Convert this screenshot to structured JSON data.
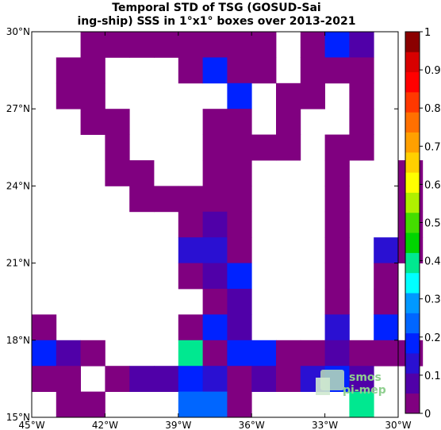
{
  "chart_data": {
    "type": "heatmap",
    "title_line1": "Temporal STD of TSG (GOSUD-Sai",
    "title_line2": "ing-ship) SSS in 1°x1° boxes over 2013-2021",
    "x_ticks": [
      {
        "value": -45,
        "label": "45°W"
      },
      {
        "value": -42,
        "label": "42°W"
      },
      {
        "value": -39,
        "label": "39°W"
      },
      {
        "value": -36,
        "label": "36°W"
      },
      {
        "value": -33,
        "label": "33°W"
      },
      {
        "value": -30,
        "label": "30°W"
      }
    ],
    "y_ticks": [
      {
        "value": 15,
        "label": "15°N"
      },
      {
        "value": 18,
        "label": "18°N"
      },
      {
        "value": 21,
        "label": "21°N"
      },
      {
        "value": 24,
        "label": "24°N"
      },
      {
        "value": 27,
        "label": "27°N"
      },
      {
        "value": 30,
        "label": "30°N"
      }
    ],
    "xlim": [
      -45,
      -30
    ],
    "ylim": [
      15,
      30
    ],
    "cell_size_deg": 1,
    "colorbar": {
      "vmin": 0,
      "vmax": 1,
      "ticks": [
        {
          "value": 0,
          "label": "0"
        },
        {
          "value": 0.1,
          "label": "0.1"
        },
        {
          "value": 0.2,
          "label": "0.2"
        },
        {
          "value": 0.3,
          "label": "0.3"
        },
        {
          "value": 0.4,
          "label": "0.4"
        },
        {
          "value": 0.5,
          "label": "0.5"
        },
        {
          "value": 0.6,
          "label": "0.6"
        },
        {
          "value": 0.7,
          "label": "0.7"
        },
        {
          "value": 0.8,
          "label": "0.8"
        },
        {
          "value": 0.9,
          "label": "0.9"
        },
        {
          "value": 1,
          "label": "1"
        }
      ],
      "colors": [
        "#800080",
        "#5000a8",
        "#2a10d2",
        "#0022ff",
        "#0066ff",
        "#0099ff",
        "#00ffff",
        "#00e890",
        "#00d400",
        "#44dd00",
        "#b0f000",
        "#ffff00",
        "#ffd000",
        "#ffa000",
        "#ff7000",
        "#ff3800",
        "#ff0000",
        "#d80000",
        "#8b0000"
      ]
    },
    "rows": [
      {
        "lat": 29,
        "cells": [
          [
            -43,
            0.05
          ],
          [
            -42,
            0.05
          ],
          [
            -41,
            0.0
          ],
          [
            -40,
            0.0
          ],
          [
            -39,
            0.05
          ],
          [
            -38,
            0.0
          ],
          [
            -37,
            0.05
          ],
          [
            -36,
            0.0
          ],
          [
            -34,
            0.05
          ],
          [
            -33,
            0.18
          ],
          [
            -32,
            0.1
          ]
        ]
      },
      {
        "lat": 28,
        "cells": [
          [
            -44,
            0.05
          ],
          [
            -43,
            0.05
          ],
          [
            -39,
            0.05
          ],
          [
            -38,
            0.18
          ],
          [
            -37,
            0.05
          ],
          [
            -36,
            0.05
          ],
          [
            -34,
            0.0
          ],
          [
            -33,
            0.05
          ],
          [
            -32,
            0.05
          ]
        ]
      },
      {
        "lat": 27,
        "cells": [
          [
            -44,
            0.0
          ],
          [
            -43,
            0.0
          ],
          [
            -37,
            0.2
          ],
          [
            -35,
            0.0
          ],
          [
            -34,
            0.05
          ],
          [
            -32,
            0.05
          ]
        ]
      },
      {
        "lat": 26,
        "cells": [
          [
            -43,
            0.0
          ],
          [
            -42,
            0.0
          ],
          [
            -38,
            0.05
          ],
          [
            -37,
            0.0
          ],
          [
            -35,
            0.0
          ],
          [
            -32,
            0.0
          ]
        ]
      },
      {
        "lat": 25,
        "cells": [
          [
            -42,
            0.0
          ],
          [
            -38,
            0.05
          ],
          [
            -37,
            0.05
          ],
          [
            -36,
            0.0
          ],
          [
            -35,
            0.0
          ],
          [
            -33,
            0.0
          ],
          [
            -32,
            0.0
          ]
        ]
      },
      {
        "lat": 24,
        "cells": [
          [
            -42,
            0.0
          ],
          [
            -41,
            0.0
          ],
          [
            -38,
            0.05
          ],
          [
            -37,
            0.05
          ],
          [
            -33,
            0.0
          ],
          [
            -30,
            0.0
          ]
        ]
      },
      {
        "lat": 23,
        "cells": [
          [
            -41,
            0.0
          ],
          [
            -40,
            0.0
          ],
          [
            -39,
            0.0
          ],
          [
            -38,
            0.05
          ],
          [
            -37,
            0.0
          ],
          [
            -33,
            0.0
          ],
          [
            -30,
            0.05
          ]
        ]
      },
      {
        "lat": 22,
        "cells": [
          [
            -39,
            0.05
          ],
          [
            -38,
            0.1
          ],
          [
            -37,
            0.05
          ],
          [
            -33,
            0.05
          ],
          [
            -30,
            0.0
          ]
        ]
      },
      {
        "lat": 21,
        "cells": [
          [
            -39,
            0.12
          ],
          [
            -38,
            0.12
          ],
          [
            -37,
            0.05
          ],
          [
            -33,
            0.0
          ],
          [
            -31,
            0.12
          ],
          [
            -30,
            0.0
          ]
        ]
      },
      {
        "lat": 20,
        "cells": [
          [
            -39,
            0.05
          ],
          [
            -38,
            0.1
          ],
          [
            -37,
            0.18
          ],
          [
            -33,
            0.0
          ],
          [
            -31,
            0.05
          ]
        ]
      },
      {
        "lat": 19,
        "cells": [
          [
            -38,
            0.05
          ],
          [
            -37,
            0.1
          ],
          [
            -33,
            0.0
          ],
          [
            -31,
            0.05
          ]
        ]
      },
      {
        "lat": 18,
        "cells": [
          [
            -45,
            0.0
          ],
          [
            -39,
            0.0
          ],
          [
            -38,
            0.18
          ],
          [
            -37,
            0.1
          ],
          [
            -33,
            0.12
          ],
          [
            -31,
            0.18
          ]
        ]
      },
      {
        "lat": 17,
        "cells": [
          [
            -45,
            0.18
          ],
          [
            -44,
            0.1
          ],
          [
            -43,
            0.05
          ],
          [
            -39,
            0.38
          ],
          [
            -38,
            0.05
          ],
          [
            -37,
            0.18
          ],
          [
            -36,
            0.18
          ],
          [
            -35,
            0.0
          ],
          [
            -34,
            0.0
          ],
          [
            -33,
            0.1
          ],
          [
            -32,
            0.05
          ],
          [
            -31,
            0.05
          ],
          [
            -30,
            0.05
          ]
        ]
      },
      {
        "lat": 16,
        "cells": [
          [
            -45,
            0.0
          ],
          [
            -44,
            0.0
          ],
          [
            -42,
            0.0
          ],
          [
            -41,
            0.1
          ],
          [
            -40,
            0.1
          ],
          [
            -39,
            0.18
          ],
          [
            -38,
            0.12
          ],
          [
            -37,
            0.05
          ],
          [
            -36,
            0.1
          ],
          [
            -35,
            0.05
          ],
          [
            -34,
            0.12
          ],
          [
            -33,
            0.18
          ],
          [
            -32,
            0.1
          ]
        ]
      },
      {
        "lat": 15,
        "cells": [
          [
            -44,
            0.0
          ],
          [
            -43,
            0.0
          ],
          [
            -39,
            0.24
          ],
          [
            -38,
            0.22
          ],
          [
            -37,
            0.05
          ],
          [
            -32,
            0.42
          ]
        ]
      }
    ]
  },
  "logo": {
    "line1": "smos",
    "line2": "pi-mep"
  }
}
